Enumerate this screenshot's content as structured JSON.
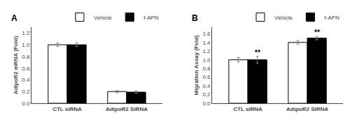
{
  "chart_data": [
    {
      "type": "bar",
      "title": "A",
      "ylabel": "AdipoR2 mRNA (Fold)",
      "categories": [
        "CTL siRNA",
        "AdipoR2 SiRNA"
      ],
      "series": [
        {
          "name": "Vehicle",
          "color": "white",
          "values": [
            1.0,
            0.2
          ],
          "errors": [
            0.03,
            0.02
          ]
        },
        {
          "name": "f-APN",
          "color": "black",
          "values": [
            1.0,
            0.19
          ],
          "errors": [
            0.03,
            0.02
          ]
        }
      ],
      "ylim": [
        0,
        1.3
      ],
      "yticks": [
        {
          "value": 0,
          "label": "0.0"
        },
        0.2,
        0.4,
        0.6,
        0.8,
        {
          "value": 1,
          "label": "1.0"
        },
        1.2
      ],
      "grid": false,
      "legend": "upper right"
    },
    {
      "type": "bar",
      "title": "B",
      "ylabel": "Migration Assay (Fold)",
      "categories": [
        "CTL siRNA",
        "AdipoR2 SiRNA"
      ],
      "series": [
        {
          "name": "Vehicle",
          "color": "white",
          "values": [
            1.0,
            1.4
          ],
          "errors": [
            0.05,
            0.04
          ]
        },
        {
          "name": "f-APN",
          "color": "black",
          "values": [
            1.0,
            1.5
          ],
          "errors": [
            0.08,
            0.04
          ]
        }
      ],
      "annotations": [
        {
          "category": "CTL siRNA",
          "series": "f-APN",
          "text": "**"
        },
        {
          "category": "AdipoR2 SiRNA",
          "series": "f-APN",
          "text": "**"
        }
      ],
      "ylim": [
        0,
        1.75
      ],
      "yticks": [
        {
          "value": 0,
          "label": "0.0"
        },
        0.2,
        0.4,
        0.6,
        0.8,
        {
          "value": 1,
          "label": "1.0"
        },
        1.2,
        1.4,
        1.6
      ],
      "grid": false,
      "legend": "upper right"
    }
  ]
}
